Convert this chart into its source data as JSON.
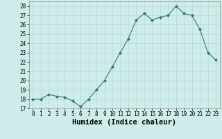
{
  "x": [
    0,
    1,
    2,
    3,
    4,
    5,
    6,
    7,
    8,
    9,
    10,
    11,
    12,
    13,
    14,
    15,
    16,
    17,
    18,
    19,
    20,
    21,
    22,
    23
  ],
  "y": [
    18,
    18,
    18.5,
    18.3,
    18.2,
    17.8,
    17.2,
    18,
    19,
    20,
    21.5,
    23,
    24.5,
    26.5,
    27.2,
    26.5,
    26.8,
    27,
    28,
    27.2,
    27,
    25.5,
    23,
    22.2
  ],
  "line_color": "#2d7a6a",
  "marker_color": "#2d7a6a",
  "bg_color": "#ceecea",
  "grid_color": "#b8d8d4",
  "xlabel": "Humidex (Indice chaleur)",
  "ylim": [
    17,
    28.5
  ],
  "xlim": [
    -0.5,
    23.5
  ],
  "yticks": [
    17,
    18,
    19,
    20,
    21,
    22,
    23,
    24,
    25,
    26,
    27,
    28
  ],
  "xticks": [
    0,
    1,
    2,
    3,
    4,
    5,
    6,
    7,
    8,
    9,
    10,
    11,
    12,
    13,
    14,
    15,
    16,
    17,
    18,
    19,
    20,
    21,
    22,
    23
  ],
  "tick_fontsize": 5.5,
  "label_fontsize": 7.5
}
